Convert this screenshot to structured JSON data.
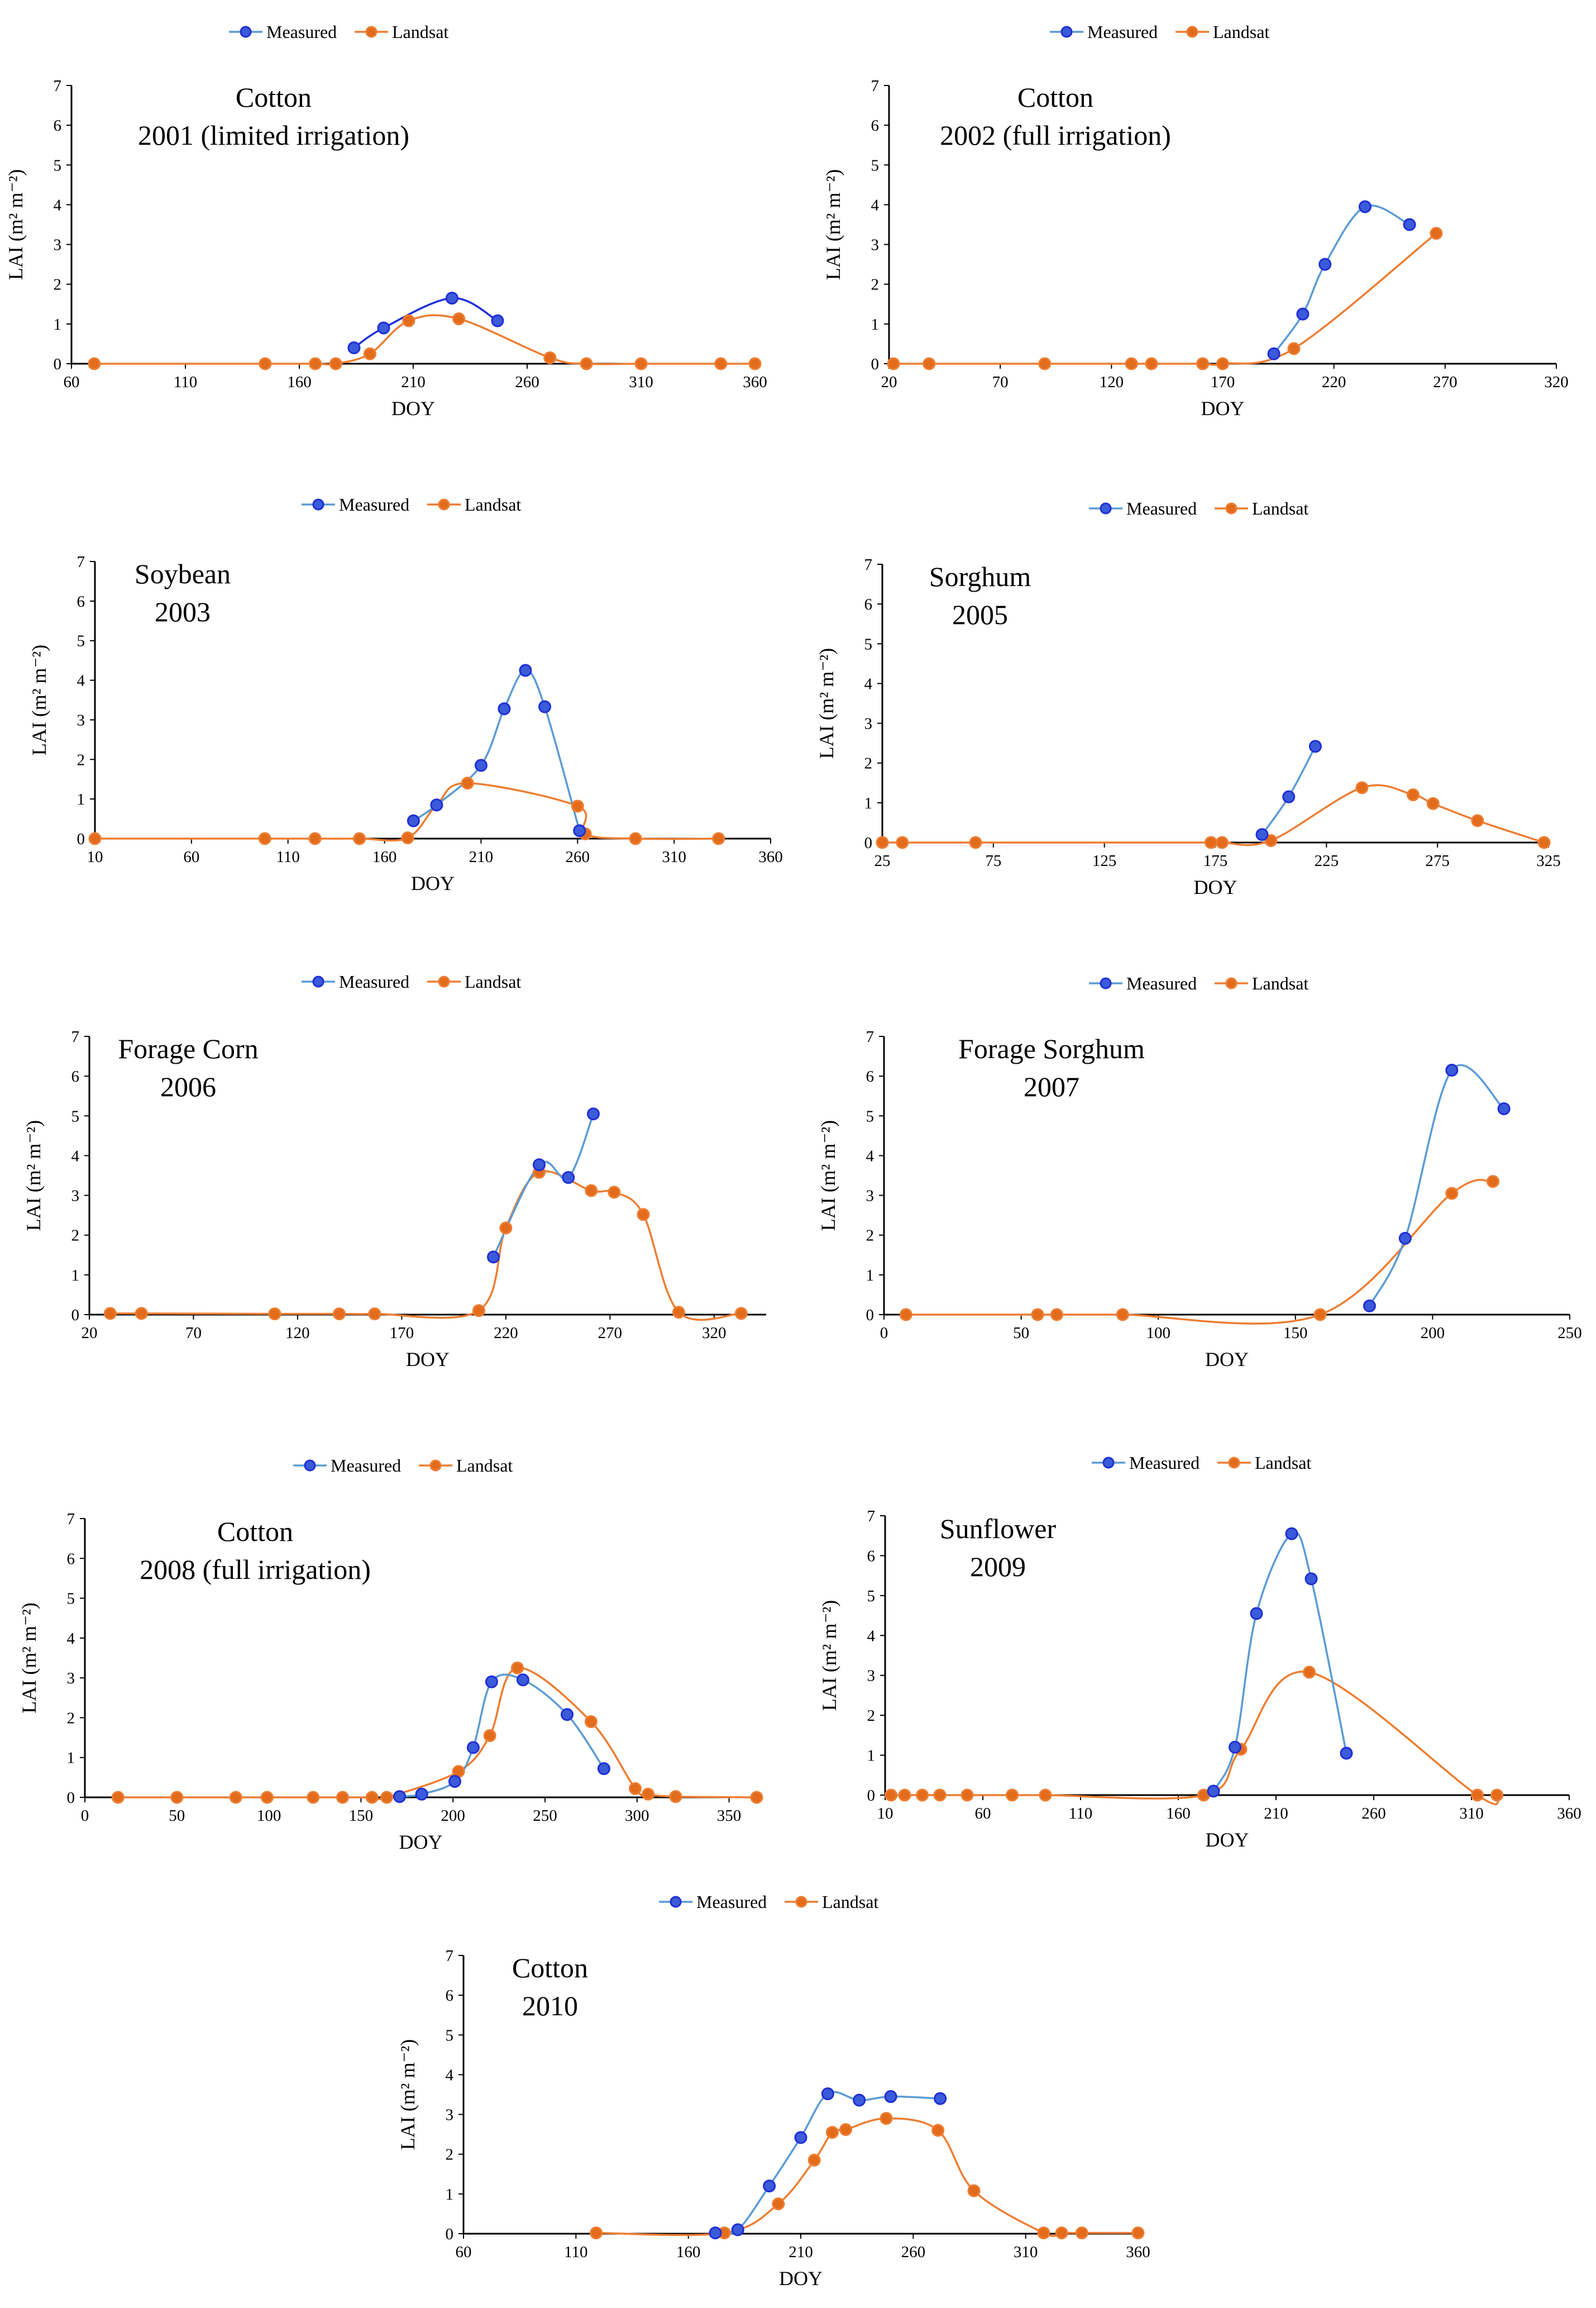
{
  "figure": {
    "colors": {
      "measured_line": "#5b9bd5",
      "measured_line_dark": "#1f2fd6",
      "measured_marker": "#3b5bd9",
      "landsat_line": "#ed7d31",
      "landsat_marker": "#e36c1c",
      "axis": "#000000"
    },
    "legend": {
      "measured_label": "Measured",
      "landsat_label": "Landsat"
    }
  },
  "chart_data": [
    {
      "type": "line",
      "title_lines": [
        "Cotton",
        "2001  (limited irrigation)"
      ],
      "xlabel": "DOY",
      "ylabel": "LAI (m² m⁻²)",
      "xlim": [
        60,
        360
      ],
      "xticks": [
        60,
        110,
        160,
        210,
        260,
        310,
        360
      ],
      "ylim": [
        0,
        7
      ],
      "yticks": [
        0,
        1,
        2,
        3,
        4,
        5,
        6,
        7
      ],
      "measured_style": "dark",
      "series": [
        {
          "name": "Measured",
          "x": [
            184,
            197,
            227,
            247
          ],
          "y": [
            0.4,
            0.9,
            1.65,
            1.08
          ]
        },
        {
          "name": "Landsat",
          "x": [
            70,
            145,
            167,
            176,
            191,
            208,
            230,
            270,
            286,
            310,
            345,
            360
          ],
          "y": [
            0,
            0,
            0,
            0,
            0.25,
            1.08,
            1.13,
            0.15,
            0,
            0,
            0,
            0
          ]
        }
      ]
    },
    {
      "type": "line",
      "title_lines": [
        "Cotton",
        "2002  (full irrigation)"
      ],
      "xlabel": "DOY",
      "ylabel": "LAI (m² m⁻²)",
      "xlim": [
        20,
        320
      ],
      "xticks": [
        20,
        70,
        120,
        170,
        220,
        270,
        320
      ],
      "ylim": [
        0,
        7
      ],
      "yticks": [
        0,
        1,
        2,
        3,
        4,
        5,
        6,
        7
      ],
      "measured_style": "light",
      "series": [
        {
          "name": "Measured",
          "x": [
            193,
            206,
            216,
            234,
            254
          ],
          "y": [
            0.25,
            1.25,
            2.5,
            3.95,
            3.5
          ]
        },
        {
          "name": "Landsat",
          "x": [
            22,
            38,
            90,
            129,
            138,
            161,
            170,
            202,
            266
          ],
          "y": [
            0,
            0,
            0,
            0,
            0,
            0,
            0,
            0.38,
            3.28
          ]
        }
      ]
    },
    {
      "type": "line",
      "title_lines": [
        "Soybean",
        "2003"
      ],
      "xlabel": "DOY",
      "ylabel": "LAI (m² m⁻²)",
      "xlim": [
        10,
        360
      ],
      "xticks": [
        10,
        60,
        110,
        160,
        210,
        260,
        310,
        360
      ],
      "ylim": [
        0,
        7
      ],
      "yticks": [
        0,
        1,
        2,
        3,
        4,
        5,
        6,
        7
      ],
      "measured_style": "light",
      "series": [
        {
          "name": "Measured",
          "x": [
            175,
            187,
            210,
            222,
            233,
            243,
            261
          ],
          "y": [
            0.45,
            0.85,
            1.85,
            3.28,
            4.25,
            3.33,
            0.2
          ]
        },
        {
          "name": "Landsat",
          "x": [
            10,
            98,
            124,
            147,
            172,
            187,
            203,
            260,
            264,
            290,
            333
          ],
          "y": [
            0,
            0,
            0,
            0,
            0.02,
            0.85,
            1.4,
            0.82,
            0.12,
            0,
            0
          ]
        }
      ]
    },
    {
      "type": "line",
      "title_lines": [
        "Sorghum",
        "2005"
      ],
      "xlabel": "DOY",
      "ylabel": "LAI (m² m⁻²)",
      "xlim": [
        25,
        325
      ],
      "xticks": [
        25,
        75,
        125,
        175,
        225,
        275,
        325
      ],
      "ylim": [
        0,
        7
      ],
      "yticks": [
        0,
        1,
        2,
        3,
        4,
        5,
        6,
        7
      ],
      "measured_style": "light",
      "series": [
        {
          "name": "Measured",
          "x": [
            196,
            208,
            220
          ],
          "y": [
            0.2,
            1.15,
            2.42
          ]
        },
        {
          "name": "Landsat",
          "x": [
            25,
            34,
            67,
            173,
            178,
            200,
            241,
            264,
            273,
            293,
            323
          ],
          "y": [
            0,
            0,
            0,
            0,
            0,
            0.05,
            1.38,
            1.2,
            0.98,
            0.55,
            0
          ]
        }
      ]
    },
    {
      "type": "line",
      "title_lines": [
        "Forage  Corn",
        "2006"
      ],
      "xlabel": "DOY",
      "ylabel": "LAI (m² m⁻²)",
      "xlim": [
        20,
        345
      ],
      "xticks": [
        20,
        70,
        120,
        170,
        220,
        270,
        320
      ],
      "ylim": [
        0,
        7
      ],
      "yticks": [
        0,
        1,
        2,
        3,
        4,
        5,
        6,
        7
      ],
      "measured_style": "light",
      "series": [
        {
          "name": "Measured",
          "x": [
            214,
            236,
            250,
            262
          ],
          "y": [
            1.45,
            3.77,
            3.45,
            5.05
          ]
        },
        {
          "name": "Landsat",
          "x": [
            30,
            45,
            109,
            140,
            157,
            207,
            220,
            236,
            261,
            272,
            286,
            303,
            333
          ],
          "y": [
            0.03,
            0.03,
            0.02,
            0.02,
            0.02,
            0.1,
            2.18,
            3.58,
            3.12,
            3.08,
            2.52,
            0.06,
            0.03
          ]
        }
      ]
    },
    {
      "type": "line",
      "title_lines": [
        "Forage  Sorghum",
        "2007"
      ],
      "xlabel": "DOY",
      "ylabel": "LAI (m² m⁻²)",
      "xlim": [
        0,
        250
      ],
      "xticks": [
        0,
        50,
        100,
        150,
        200,
        250
      ],
      "ylim": [
        0,
        7
      ],
      "yticks": [
        0,
        1,
        2,
        3,
        4,
        5,
        6,
        7
      ],
      "measured_style": "light",
      "series": [
        {
          "name": "Measured",
          "x": [
            177,
            190,
            207,
            226
          ],
          "y": [
            0.22,
            1.92,
            6.15,
            5.18
          ]
        },
        {
          "name": "Landsat",
          "x": [
            8,
            56,
            63,
            87,
            159,
            207,
            222
          ],
          "y": [
            0,
            0,
            0,
            0,
            0,
            3.05,
            3.35
          ]
        }
      ]
    },
    {
      "type": "line",
      "title_lines": [
        "Cotton",
        "2008  (full irrigation)"
      ],
      "xlabel": "DOY",
      "ylabel": "LAI (m² m⁻²)",
      "xlim": [
        0,
        365
      ],
      "xticks": [
        0,
        50,
        100,
        150,
        200,
        250,
        300,
        350
      ],
      "ylim": [
        0,
        7
      ],
      "yticks": [
        0,
        1,
        2,
        3,
        4,
        5,
        6,
        7
      ],
      "measured_style": "light",
      "series": [
        {
          "name": "Measured",
          "x": [
            171,
            183,
            201,
            211,
            221,
            238,
            262,
            282
          ],
          "y": [
            0.02,
            0.08,
            0.4,
            1.25,
            2.9,
            2.95,
            2.08,
            0.72
          ]
        },
        {
          "name": "Landsat",
          "x": [
            18,
            50,
            82,
            99,
            124,
            140,
            156,
            164,
            203,
            220,
            235,
            275,
            299,
            306,
            321,
            365
          ],
          "y": [
            0,
            0,
            0,
            0,
            0,
            0,
            0,
            0,
            0.65,
            1.55,
            3.25,
            1.9,
            0.22,
            0.08,
            0.02,
            0
          ]
        }
      ]
    },
    {
      "type": "line",
      "title_lines": [
        "Sunflower",
        "2009"
      ],
      "xlabel": "DOY",
      "ylabel": "LAI (m² m⁻²)",
      "xlim": [
        10,
        360
      ],
      "xticks": [
        10,
        60,
        110,
        160,
        210,
        260,
        310,
        360
      ],
      "ylim": [
        0,
        7
      ],
      "yticks": [
        0,
        1,
        2,
        3,
        4,
        5,
        6,
        7
      ],
      "measured_style": "light",
      "series": [
        {
          "name": "Measured",
          "x": [
            178,
            189,
            200,
            218,
            228,
            246
          ],
          "y": [
            0.1,
            1.2,
            4.55,
            6.55,
            5.42,
            1.05
          ]
        },
        {
          "name": "Landsat",
          "x": [
            13,
            20,
            29,
            38,
            52,
            75,
            92,
            173,
            192,
            227,
            313,
            323
          ],
          "y": [
            0,
            0,
            0,
            0,
            0,
            0,
            0,
            0,
            1.15,
            3.08,
            0,
            0
          ]
        }
      ]
    },
    {
      "type": "line",
      "title_lines": [
        "Cotton",
        "2010"
      ],
      "xlabel": "DOY",
      "ylabel": "LAI (m² m⁻²)",
      "xlim": [
        60,
        360
      ],
      "xticks": [
        60,
        110,
        160,
        210,
        260,
        310,
        360
      ],
      "ylim": [
        0,
        7
      ],
      "yticks": [
        0,
        1,
        2,
        3,
        4,
        5,
        6,
        7
      ],
      "measured_style": "light",
      "series": [
        {
          "name": "Measured",
          "x": [
            172,
            182,
            196,
            210,
            222,
            236,
            250,
            272
          ],
          "y": [
            0.02,
            0.1,
            1.2,
            2.42,
            3.52,
            3.36,
            3.45,
            3.4
          ]
        },
        {
          "name": "Landsat",
          "x": [
            119,
            176,
            200,
            216,
            224,
            230,
            248,
            271,
            287,
            318,
            326,
            335,
            360
          ],
          "y": [
            0.02,
            0.02,
            0.75,
            1.85,
            2.55,
            2.62,
            2.9,
            2.6,
            1.08,
            0.02,
            0.02,
            0.02,
            0.02
          ]
        }
      ]
    }
  ]
}
